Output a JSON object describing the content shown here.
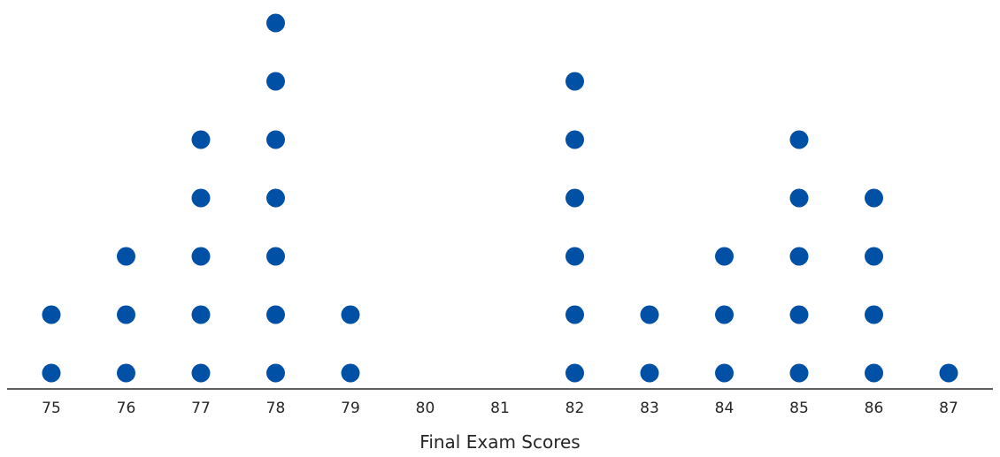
{
  "chart_data": {
    "type": "scatter",
    "subtype": "dot-plot",
    "title": "",
    "xlabel": "Final Exam Scores",
    "ylabel": "",
    "xlim": [
      75,
      87
    ],
    "x_ticks": [
      "75",
      "76",
      "77",
      "78",
      "79",
      "80",
      "81",
      "82",
      "83",
      "84",
      "85",
      "86",
      "87"
    ],
    "grid": false,
    "legend": "none",
    "dot_color": "#0050A5",
    "axis_color": "#000000",
    "data": [
      {
        "x": 75,
        "count": 2
      },
      {
        "x": 76,
        "count": 3
      },
      {
        "x": 77,
        "count": 5
      },
      {
        "x": 78,
        "count": 7
      },
      {
        "x": 79,
        "count": 2
      },
      {
        "x": 80,
        "count": 0
      },
      {
        "x": 81,
        "count": 0
      },
      {
        "x": 82,
        "count": 6
      },
      {
        "x": 83,
        "count": 2
      },
      {
        "x": 84,
        "count": 3
      },
      {
        "x": 85,
        "count": 5
      },
      {
        "x": 86,
        "count": 4
      },
      {
        "x": 87,
        "count": 1
      }
    ]
  }
}
